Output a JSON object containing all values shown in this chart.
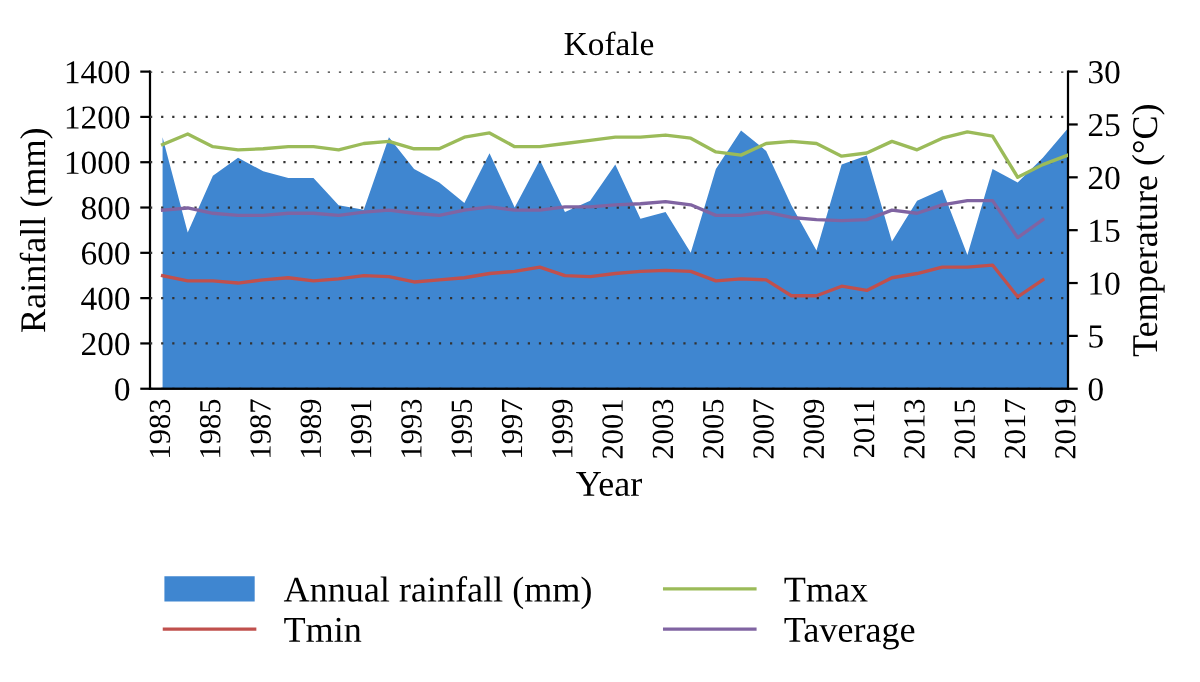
{
  "chart_data": {
    "type": "area",
    "title": "Kofale",
    "xlabel": "Year",
    "ylabel": "Rainfall (mm)",
    "y2label": "Temperature (°C)",
    "categories": [
      "1983",
      null,
      "1985",
      null,
      "1987",
      null,
      "1989",
      null,
      "1991",
      null,
      "1993",
      null,
      "1995",
      null,
      "1997",
      null,
      "1999",
      null,
      "2001",
      null,
      "2003",
      null,
      "2005",
      null,
      "2007",
      null,
      "2009",
      null,
      "2011",
      null,
      "2013",
      null,
      "2015",
      null,
      "2017",
      null,
      "2019"
    ],
    "series": [
      {
        "name": "Annual rainfall (mm)",
        "color": "#3f86d0",
        "values": [
          1110,
          690,
          940,
          1020,
          960,
          930,
          930,
          810,
          790,
          1110,
          970,
          910,
          820,
          1040,
          800,
          1010,
          780,
          830,
          990,
          750,
          780,
          600,
          970,
          1140,
          1050,
          810,
          610,
          990,
          1030,
          650,
          830,
          880,
          590,
          970,
          910,
          1020,
          1150
        ]
      },
      {
        "name": "Tmax",
        "type": "line",
        "axis": "y2",
        "color": "#9bbb59",
        "values": [
          23.1,
          24.1,
          22.9,
          22.6,
          22.7,
          22.9,
          22.9,
          22.6,
          23.2,
          23.4,
          22.7,
          22.7,
          23.8,
          24.2,
          22.9,
          22.9,
          23.2,
          23.5,
          23.8,
          23.8,
          24.0,
          23.7,
          22.4,
          22.1,
          23.2,
          23.4,
          23.2,
          22.0,
          22.3,
          23.4,
          22.6,
          23.7,
          24.3,
          23.9,
          20.0,
          21.2,
          22.1
        ]
      },
      {
        "name": "Tmin",
        "type": "line",
        "axis": "y2",
        "color": "#c0504d",
        "values": [
          10.7,
          10.2,
          10.2,
          10.0,
          10.3,
          10.5,
          10.2,
          10.4,
          10.7,
          10.6,
          10.1,
          10.3,
          10.5,
          10.9,
          11.1,
          11.5,
          10.7,
          10.6,
          10.9,
          11.1,
          11.2,
          11.1,
          10.2,
          10.4,
          10.3,
          8.8,
          8.8,
          9.7,
          9.3,
          10.5,
          10.9,
          11.5,
          11.5,
          11.7,
          8.7,
          10.3,
          null
        ]
      },
      {
        "name": "Taverage",
        "type": "line",
        "axis": "y2",
        "color": "#8064a2",
        "values": [
          16.9,
          17.1,
          16.6,
          16.4,
          16.4,
          16.6,
          16.6,
          16.4,
          16.7,
          16.9,
          16.6,
          16.4,
          16.9,
          17.2,
          16.9,
          16.9,
          17.2,
          17.2,
          17.4,
          17.5,
          17.7,
          17.4,
          16.4,
          16.4,
          16.7,
          16.2,
          16.0,
          15.9,
          16.0,
          16.9,
          16.6,
          17.4,
          17.8,
          17.8,
          14.3,
          16.0,
          null
        ]
      }
    ],
    "ylim": [
      0,
      1400
    ],
    "yticks": [
      0,
      200,
      400,
      600,
      800,
      1000,
      1200,
      1400
    ],
    "y2lim": [
      0,
      30
    ],
    "y2ticks": [
      0,
      5,
      10,
      15,
      20,
      25,
      30
    ],
    "grid": "y",
    "legend": "bottom",
    "marker": "none",
    "line_style": "solid"
  }
}
